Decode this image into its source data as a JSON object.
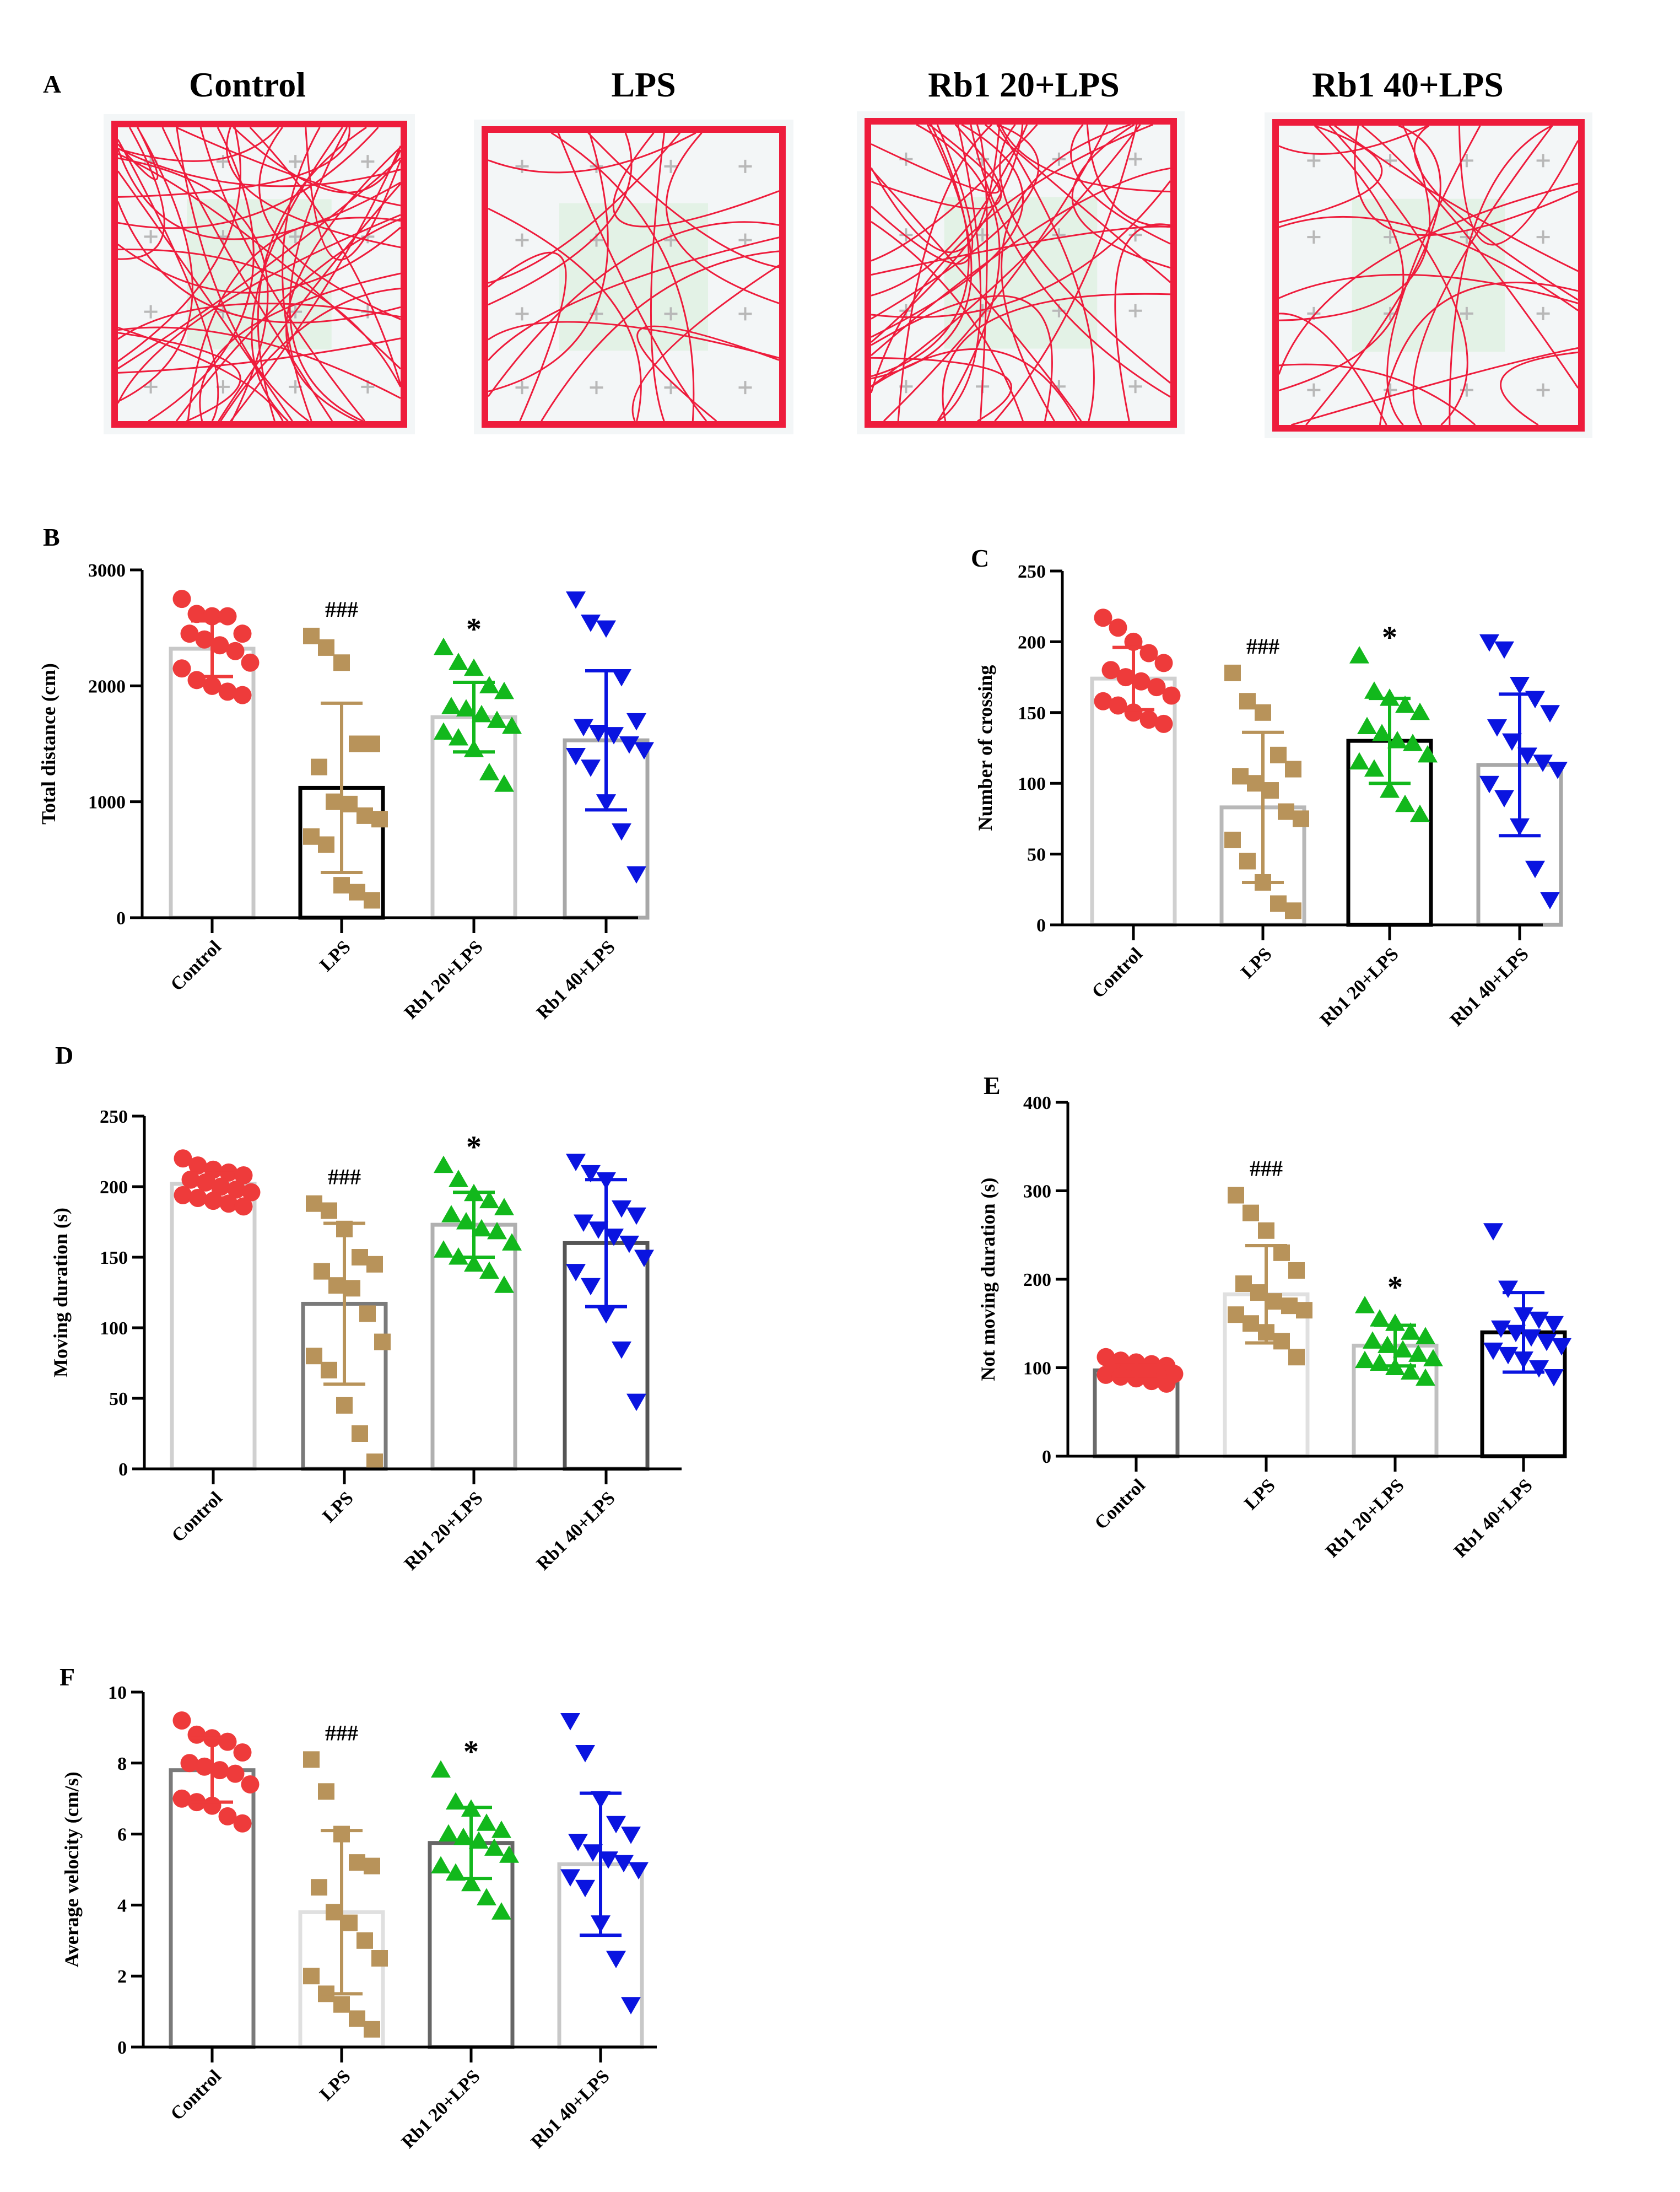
{
  "figure": {
    "panel_a": {
      "letter": "A",
      "groups": [
        "Control",
        "LPS",
        "Rb1 20+LPS",
        "Rb1 40+LPS"
      ]
    },
    "panel_letters": [
      "B",
      "C",
      "D",
      "E",
      "F"
    ]
  },
  "colors": {
    "control": "#ee3b3b",
    "lps": "#b8935a",
    "rb20": "#12b81c",
    "rb40": "#0a14e0",
    "track": "#ee1c3c"
  },
  "chart_data": [
    {
      "panel": "B",
      "type": "bar",
      "ylabel": "Total distance (cm)",
      "ylim": [
        0,
        3000
      ],
      "yticks": [
        0,
        1000,
        2000,
        3000
      ],
      "categories": [
        "Control",
        "LPS",
        "Rb1 20+LPS",
        "Rb1 40+LPS"
      ],
      "means": [
        2320,
        1120,
        1730,
        1530
      ],
      "sd": [
        240,
        730,
        300,
        600
      ],
      "bar_edge_colors": [
        "#c8c8c8",
        "#000000",
        "#c8c8c8",
        "#a8a8a8"
      ],
      "annotations": [
        "",
        "###",
        "*",
        ""
      ],
      "points": [
        [
          2750,
          2620,
          2600,
          2600,
          2450,
          2450,
          2400,
          2350,
          2300,
          2200,
          2150,
          2050,
          2000,
          1950,
          1920
        ],
        [
          2430,
          2330,
          2200,
          1500,
          1500,
          1300,
          1000,
          980,
          880,
          850,
          700,
          630,
          280,
          220,
          150
        ],
        [
          2330,
          2200,
          2150,
          2000,
          1950,
          1820,
          1800,
          1750,
          1700,
          1650,
          1600,
          1550,
          1450,
          1250,
          1150
        ],
        [
          2750,
          2550,
          2500,
          2080,
          1700,
          1650,
          1600,
          1580,
          1500,
          1450,
          1400,
          1300,
          1000,
          750,
          380
        ]
      ],
      "markers": [
        "circle",
        "square",
        "triangle",
        "triangle-down"
      ]
    },
    {
      "panel": "C",
      "type": "bar",
      "ylabel": "Number of crossing",
      "ylim": [
        0,
        250
      ],
      "yticks": [
        0,
        50,
        100,
        150,
        200,
        250
      ],
      "categories": [
        "Control",
        "LPS",
        "Rb1 20+LPS",
        "Rb1 40+LPS"
      ],
      "means": [
        174,
        83,
        130,
        113
      ],
      "sd": [
        22,
        53,
        30,
        50
      ],
      "bar_edge_colors": [
        "#d0d0d0",
        "#b8b8b8",
        "#000000",
        "#a8a8a8"
      ],
      "annotations": [
        "",
        "###",
        "*",
        ""
      ],
      "points": [
        [
          217,
          210,
          200,
          192,
          185,
          180,
          175,
          172,
          168,
          162,
          158,
          155,
          150,
          145,
          142
        ],
        [
          178,
          158,
          150,
          120,
          110,
          105,
          100,
          95,
          80,
          75,
          60,
          45,
          30,
          15,
          10
        ],
        [
          190,
          165,
          160,
          155,
          150,
          140,
          135,
          130,
          128,
          120,
          115,
          110,
          95,
          85,
          78
        ],
        [
          200,
          195,
          170,
          160,
          150,
          140,
          130,
          120,
          115,
          110,
          100,
          90,
          70,
          40,
          18
        ]
      ],
      "markers": [
        "circle",
        "square",
        "triangle",
        "triangle-down"
      ]
    },
    {
      "panel": "D",
      "type": "bar",
      "ylabel": "Moving duration (s)",
      "ylim": [
        0,
        250
      ],
      "yticks": [
        0,
        50,
        100,
        150,
        200,
        250
      ],
      "categories": [
        "Control",
        "LPS",
        "Rb1 20+LPS",
        "Rb1 40+LPS"
      ],
      "means": [
        202,
        117,
        173,
        160
      ],
      "sd": [
        10,
        57,
        23,
        45
      ],
      "bar_edge_colors": [
        "#d0d0d0",
        "#7a7a7a",
        "#b0b0b0",
        "#555555"
      ],
      "annotations": [
        "",
        "###",
        "*",
        ""
      ],
      "points": [
        [
          220,
          215,
          212,
          210,
          208,
          205,
          203,
          200,
          198,
          196,
          194,
          192,
          190,
          188,
          186
        ],
        [
          188,
          183,
          170,
          150,
          145,
          140,
          130,
          128,
          110,
          90,
          80,
          70,
          45,
          25,
          5
        ],
        [
          215,
          205,
          195,
          190,
          185,
          180,
          175,
          170,
          168,
          160,
          155,
          150,
          145,
          140,
          130
        ],
        [
          218,
          210,
          205,
          185,
          180,
          175,
          170,
          165,
          160,
          150,
          140,
          130,
          110,
          85,
          48
        ]
      ],
      "markers": [
        "circle",
        "square",
        "triangle",
        "triangle-down"
      ]
    },
    {
      "panel": "E",
      "type": "bar",
      "ylabel": "Not moving duration (s)",
      "ylim": [
        0,
        400
      ],
      "yticks": [
        0,
        100,
        200,
        300,
        400
      ],
      "categories": [
        "Control",
        "LPS",
        "Rb1 20+LPS",
        "Rb1 40+LPS"
      ],
      "means": [
        97,
        183,
        125,
        140
      ],
      "sd": [
        10,
        55,
        23,
        45
      ],
      "bar_edge_colors": [
        "#6a6a6a",
        "#e0e0e0",
        "#c0c0c0",
        "#000000"
      ],
      "annotations": [
        "",
        "###",
        "*",
        ""
      ],
      "points": [
        [
          112,
          108,
          106,
          104,
          102,
          100,
          98,
          97,
          95,
          93,
          92,
          90,
          88,
          85,
          82
        ],
        [
          295,
          275,
          255,
          230,
          210,
          195,
          185,
          175,
          170,
          165,
          160,
          150,
          140,
          130,
          112
        ],
        [
          170,
          155,
          150,
          140,
          135,
          130,
          125,
          120,
          115,
          110,
          108,
          105,
          100,
          95,
          88
        ],
        [
          255,
          190,
          160,
          155,
          150,
          145,
          140,
          135,
          130,
          125,
          120,
          115,
          110,
          100,
          90
        ]
      ],
      "markers": [
        "circle",
        "square",
        "triangle",
        "triangle-down"
      ]
    },
    {
      "panel": "F",
      "type": "bar",
      "ylabel": "Average velocity (cm/s)",
      "ylim": [
        0,
        10
      ],
      "yticks": [
        0,
        2,
        4,
        6,
        8,
        10
      ],
      "categories": [
        "Control",
        "LPS",
        "Rb1 20+LPS",
        "Rb1 40+LPS"
      ],
      "means": [
        7.8,
        3.8,
        5.75,
        5.15
      ],
      "sd": [
        0.9,
        2.3,
        1.0,
        2.0
      ],
      "bar_edge_colors": [
        "#7a7a7a",
        "#e0e0e0",
        "#666666",
        "#c8c8c8"
      ],
      "annotations": [
        "",
        "###",
        "*",
        ""
      ],
      "points": [
        [
          9.2,
          8.8,
          8.7,
          8.6,
          8.3,
          8.0,
          7.9,
          7.8,
          7.7,
          7.4,
          7.0,
          6.9,
          6.8,
          6.5,
          6.3
        ],
        [
          8.1,
          7.2,
          6.0,
          5.2,
          5.1,
          4.5,
          3.8,
          3.5,
          3.0,
          2.5,
          2.0,
          1.5,
          1.2,
          0.8,
          0.5
        ],
        [
          7.8,
          6.9,
          6.7,
          6.3,
          6.1,
          6.0,
          5.9,
          5.8,
          5.6,
          5.4,
          5.1,
          4.9,
          4.6,
          4.2,
          3.8
        ],
        [
          9.2,
          8.3,
          7.0,
          6.3,
          6.0,
          5.8,
          5.5,
          5.3,
          5.2,
          5.0,
          4.8,
          4.5,
          3.5,
          2.5,
          1.2
        ]
      ],
      "markers": [
        "circle",
        "square",
        "triangle",
        "triangle-down"
      ]
    }
  ]
}
